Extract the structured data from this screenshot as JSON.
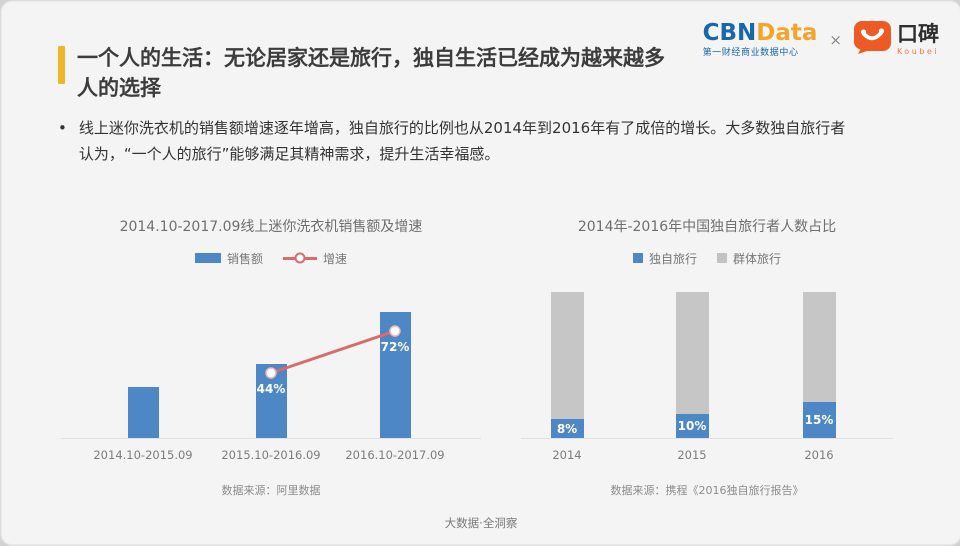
{
  "header": {
    "title": "一个人的生活：无论居家还是旅行，独自生活已经成为越来越多\n人的选择",
    "logos": {
      "cbn_part1": "CBN",
      "cbn_part2": "Data",
      "cbn_subtitle": "第一财经商业数据中心",
      "separator": "×",
      "koubei_cn": "口碑",
      "koubei_en": "Koubei"
    }
  },
  "bullet": {
    "marker": "•",
    "text": "线上迷你洗衣机的销售额增速逐年增高，独自旅行的比例也从2014年到2016年有了成倍的增长。大多数独自旅行者\n认为，“一个人的旅行”能够满足其精神需求，提升生活幸福感。"
  },
  "chart_data": [
    {
      "type": "bar",
      "title": "2014.10-2017.09线上迷你洗衣机销售额及增速",
      "categories": [
        "2014.10-2015.09",
        "2015.10-2016.09",
        "2016.10-2017.09"
      ],
      "series": [
        {
          "name": "销售额",
          "kind": "bar",
          "values_rel": [
            0.345,
            0.5,
            0.85
          ],
          "color": "#4e87c5"
        },
        {
          "name": "增速",
          "kind": "line",
          "values_pct": [
            null,
            44,
            72
          ],
          "labels": [
            "",
            "44%",
            "72%"
          ],
          "color": "#d96b6b"
        }
      ],
      "legend_position": "top",
      "grid": false,
      "ylim_pct": [
        0,
        100
      ],
      "caption": "数据来源：阿里数据"
    },
    {
      "type": "bar",
      "subtype": "stacked",
      "title": "2014年-2016年中国独自旅行者人数占比",
      "categories": [
        "2014",
        "2015",
        "2016"
      ],
      "series": [
        {
          "name": "独自旅行",
          "values": [
            8,
            10,
            15
          ],
          "labels": [
            "8%",
            "10%",
            "15%"
          ],
          "color": "#4e87c5"
        },
        {
          "name": "群体旅行",
          "values": [
            92,
            90,
            85
          ],
          "color": "#c6c6c6"
        }
      ],
      "legend_position": "top",
      "grid": false,
      "caption": "数据来源：携程《2016独自旅行报告》"
    }
  ],
  "footer": {
    "text": "大数据·全洞察"
  },
  "colors": {
    "accent_bar": "#eeb62a",
    "bar_blue": "#4e87c5",
    "bar_gray": "#c6c6c6",
    "line_red": "#d96b6b",
    "cbn_blue": "#1767ae",
    "cbn_orange": "#f6a32a",
    "koubei_orange": "#ee5a24",
    "slide_bg": "#f4f4f4"
  }
}
